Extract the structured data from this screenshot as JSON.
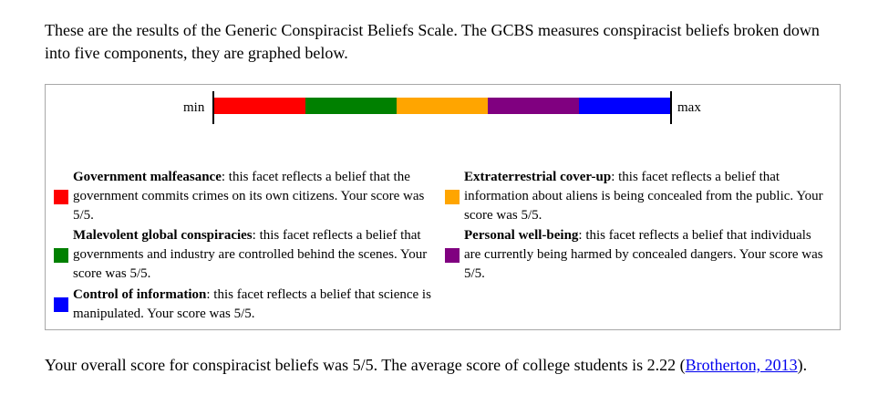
{
  "intro": "These are the results of the Generic Conspiracist Beliefs Scale. The GCBS measures conspiracist beliefs broken down into five components, they are graphed below.",
  "scale": {
    "min_label": "min",
    "max_label": "max",
    "segments": [
      {
        "facet": "Government malfeasance",
        "color": "#ff0000"
      },
      {
        "facet": "Malevolent global conspiracies",
        "color": "#008000"
      },
      {
        "facet": "Extraterrestrial cover-up",
        "color": "#ffa500"
      },
      {
        "facet": "Personal well-being",
        "color": "#800080"
      },
      {
        "facet": "Control of information",
        "color": "#0000ff"
      }
    ]
  },
  "legend": {
    "government": {
      "title": "Government malfeasance",
      "desc": ": this facet reflects a belief that the government commits crimes on its own citizens. Your score was 5/5.",
      "color": "#ff0000"
    },
    "malevolent": {
      "title": "Malevolent global conspiracies",
      "desc": ": this facet reflects a belief that governments and industry are controlled behind the scenes. Your score was 5/5.",
      "color": "#008000"
    },
    "control": {
      "title": "Control of information",
      "desc": ": this facet reflects a belief that science is manipulated. Your score was 5/5.",
      "color": "#0000ff"
    },
    "extraterrestrial": {
      "title": "Extraterrestrial cover-up",
      "desc": ": this facet reflects a belief that information about aliens is being concealed from the public. Your score was 5/5.",
      "color": "#ffa500"
    },
    "wellbeing": {
      "title": "Personal well-being",
      "desc": ": this facet reflects a belief that individuals are currently being harmed by concealed dangers. Your score was 5/5.",
      "color": "#800080"
    }
  },
  "outro": {
    "text_before": "Your overall score for conspiracist beliefs was 5/5. The average score of college students is 2.22 (",
    "link_text": "Brotherton, 2013",
    "text_after": ")."
  }
}
